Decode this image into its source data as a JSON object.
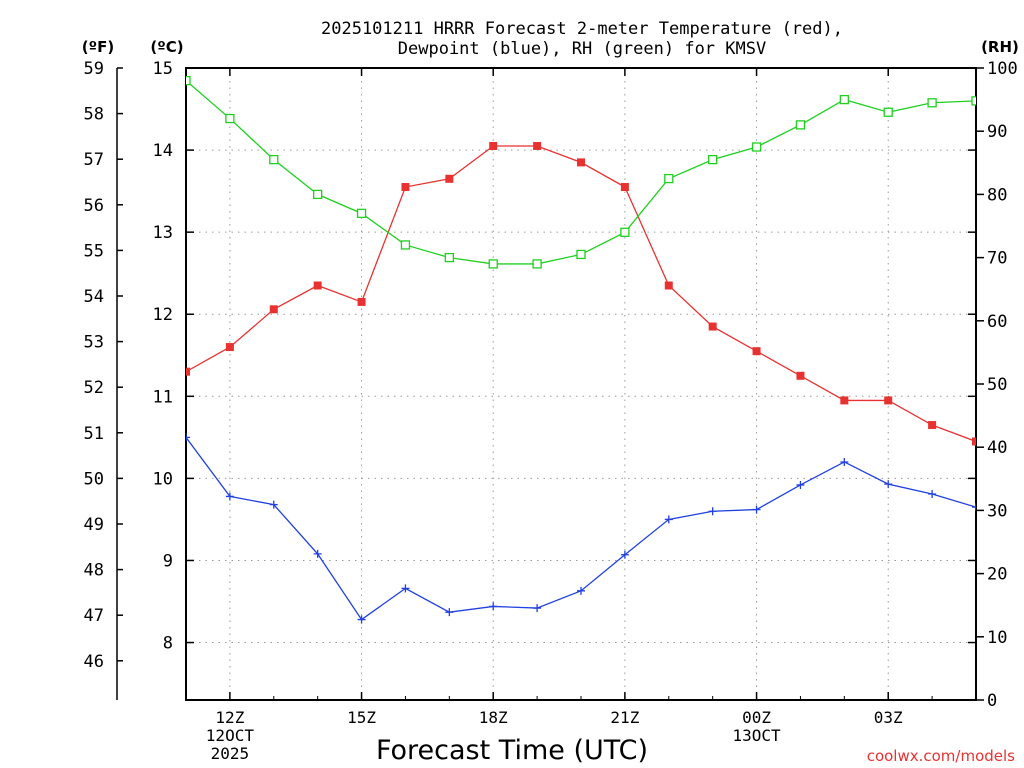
{
  "chart_data": {
    "type": "line",
    "title_line1": "2025101211 HRRR Forecast 2-meter Temperature (red),",
    "title_line2": "Dewpoint (blue), RH (green) for KMSV",
    "xlabel": "Forecast Time (UTC)",
    "credit": "coolwx.com/models",
    "unit_f": "(ºF)",
    "unit_c": "(ºC)",
    "unit_rh": "(RH)",
    "x_hours": [
      11,
      12,
      13,
      14,
      15,
      16,
      17,
      18,
      19,
      20,
      21,
      22,
      23,
      24,
      25,
      26,
      27,
      28,
      29
    ],
    "xlim": [
      11,
      29
    ],
    "x_ticks": [
      {
        "hour": 12,
        "label": "12Z",
        "date1": "12OCT",
        "date2": "2025"
      },
      {
        "hour": 15,
        "label": "15Z",
        "date1": "",
        "date2": ""
      },
      {
        "hour": 18,
        "label": "18Z",
        "date1": "",
        "date2": ""
      },
      {
        "hour": 21,
        "label": "21Z",
        "date1": "",
        "date2": ""
      },
      {
        "hour": 24,
        "label": "00Z",
        "date1": "13OCT",
        "date2": ""
      },
      {
        "hour": 27,
        "label": "03Z",
        "date1": "",
        "date2": ""
      }
    ],
    "y_celsius": {
      "min": 7.3,
      "max": 15.0,
      "ticks": [
        8,
        9,
        10,
        11,
        12,
        13,
        14,
        15
      ]
    },
    "y_fahrenheit": {
      "ticks": [
        46,
        47,
        48,
        49,
        50,
        51,
        52,
        53,
        54,
        55,
        56,
        57,
        58,
        59
      ]
    },
    "y_rh": {
      "min": 0,
      "max": 100,
      "ticks": [
        0,
        10,
        20,
        30,
        40,
        50,
        60,
        70,
        80,
        90,
        100
      ]
    },
    "series": [
      {
        "name": "Temperature",
        "units": "C",
        "color": "#e83232",
        "marker": "filled-square",
        "values": [
          11.3,
          11.6,
          12.06,
          12.35,
          12.15,
          13.55,
          13.65,
          14.05,
          14.05,
          13.85,
          13.55,
          12.35,
          11.85,
          11.55,
          11.25,
          10.95,
          10.95,
          10.65,
          10.45
        ]
      },
      {
        "name": "Dewpoint",
        "units": "C",
        "color": "#2040e0",
        "marker": "plus",
        "values": [
          10.5,
          9.78,
          9.68,
          9.08,
          8.28,
          8.66,
          8.37,
          8.44,
          8.42,
          8.63,
          9.07,
          9.5,
          9.6,
          9.62,
          9.92,
          10.2,
          9.93,
          9.81,
          9.65
        ]
      },
      {
        "name": "RH",
        "units": "%",
        "color": "#20d020",
        "marker": "open-square",
        "values": [
          98,
          92,
          85.5,
          80,
          77,
          72,
          70,
          69,
          69,
          70.5,
          74,
          82.5,
          85.5,
          87.5,
          91,
          95,
          93,
          94.5,
          94.8
        ]
      }
    ]
  }
}
